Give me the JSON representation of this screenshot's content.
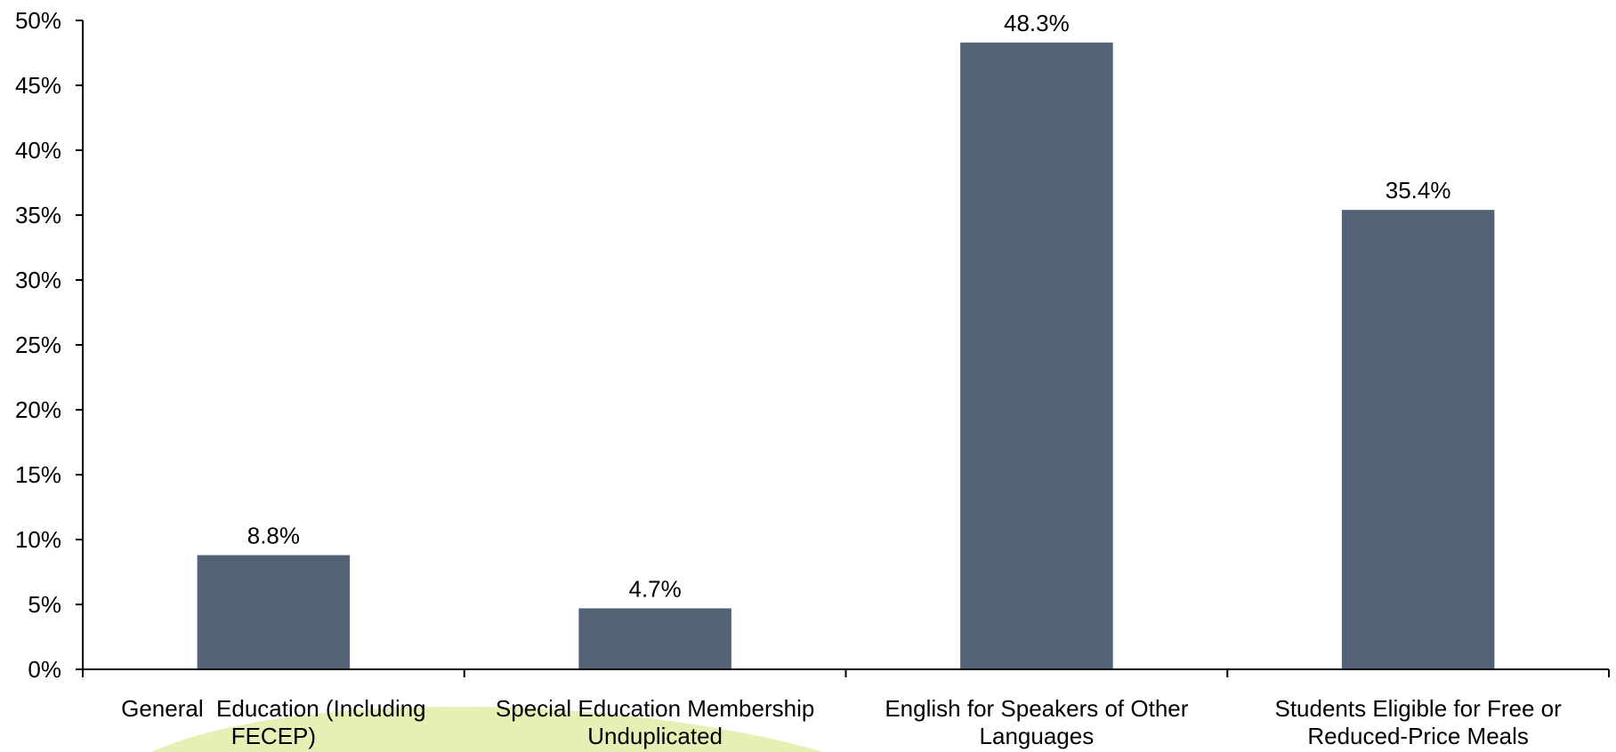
{
  "chart_data": {
    "type": "bar",
    "title": "",
    "xlabel": "",
    "ylabel": "",
    "categories": [
      [
        "General  Education (Including",
        "FECEP)"
      ],
      [
        "Special Education Membership",
        "Unduplicated"
      ],
      [
        "English for Speakers of Other",
        "Languages"
      ],
      [
        "Students Eligible for Free or",
        "Reduced-Price Meals"
      ]
    ],
    "values": [
      8.8,
      4.7,
      48.3,
      35.4
    ],
    "value_labels": [
      "8.8%",
      "4.7%",
      "48.3%",
      "35.4%"
    ],
    "ylim": [
      0,
      50
    ],
    "y_ticks": [
      0,
      5,
      10,
      15,
      20,
      25,
      30,
      35,
      40,
      45,
      50
    ],
    "y_tick_labels": [
      "0%",
      "5%",
      "10%",
      "15%",
      "20%",
      "25%",
      "30%",
      "35%",
      "40%",
      "45%",
      "50%"
    ],
    "grid": false,
    "legend": "none",
    "colors": {
      "bar": "#536274",
      "axis": "#000000",
      "decoration": "#e6efb4"
    }
  }
}
